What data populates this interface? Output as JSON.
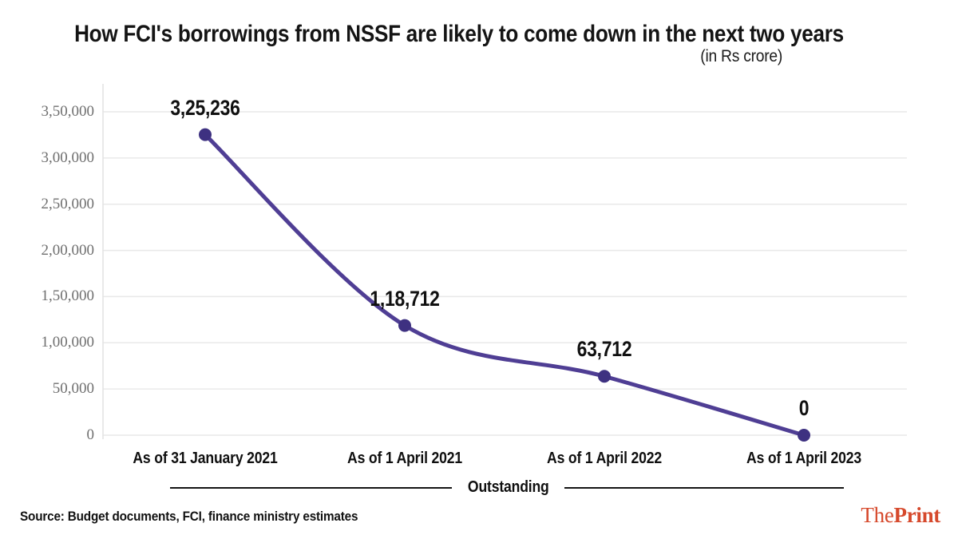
{
  "header": {
    "title": "How FCI's borrowings from NSSF are likely to come down in the next two years",
    "subtitle": "(in Rs crore)"
  },
  "chart_data": {
    "type": "line",
    "title": "How FCI's borrowings from NSSF are likely to come down in the next two years",
    "unit_note": "(in Rs crore)",
    "categories": [
      "As of 31 January 2021",
      "As of 1 April 2021",
      "As of 1 April 2022",
      "As of 1 April 2023"
    ],
    "series": [
      {
        "name": "Outstanding",
        "values": [
          325236,
          118712,
          63712,
          0
        ]
      }
    ],
    "point_labels": [
      "3,25,236",
      "1,18,712",
      "63,712",
      "0"
    ],
    "y_axis": {
      "ticks": [
        "3,50,000",
        "3,00,000",
        "2,50,000",
        "2,00,000",
        "1,50,000",
        "1,00,000",
        "50,000",
        "0"
      ],
      "tick_values": [
        350000,
        300000,
        250000,
        200000,
        150000,
        100000,
        50000,
        0
      ],
      "range": [
        0,
        350000
      ]
    },
    "grid": "horizontal",
    "legend": {
      "label": "Outstanding",
      "position": "bottom-center"
    },
    "colors": {
      "line": "#4f3e94",
      "marker": "#3e3181",
      "grid": "#e9e9e9",
      "axis": "#e2e2e2",
      "tick_text": "#6f6f6f",
      "label_text": "#101010"
    }
  },
  "footer": {
    "source": "Source: Budget documents, FCI, finance ministry estimates",
    "brand": {
      "the": "The",
      "print": "Print",
      "color": "#d6492c"
    }
  }
}
